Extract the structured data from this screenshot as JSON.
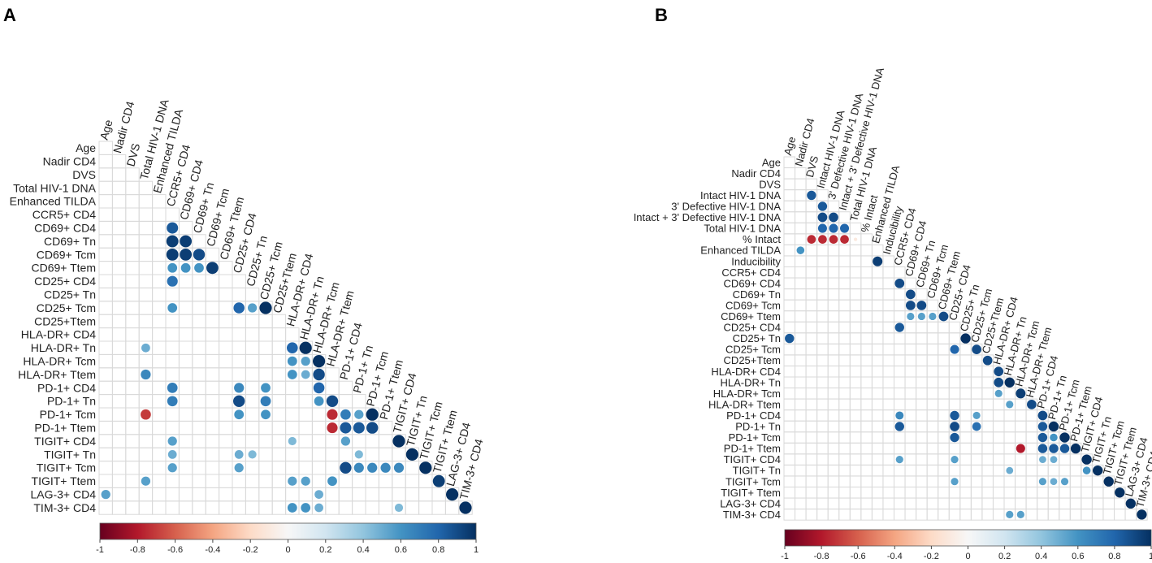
{
  "chart_data": [
    {
      "type": "heatmap",
      "panel_label": "A",
      "title": "",
      "color_scale": {
        "min": -1,
        "max": 1,
        "low": "#67001f",
        "mid": "#f7f7f7",
        "high": "#053061",
        "ticks": [
          "-1",
          "-0.8",
          "-0.6",
          "-0.4",
          "-0.2",
          "0",
          "0.2",
          "0.4",
          "0.6",
          "0.8",
          "1"
        ]
      },
      "variables": [
        "Age",
        "Nadir CD4",
        "DVS",
        "Total HIV-1 DNA",
        "Enhanced TILDA",
        "CCR5+ CD4",
        "CD69+ CD4",
        "CD69+ Tn",
        "CD69+ Tcm",
        "CD69+ Ttem",
        "CD25+ CD4",
        "CD25+ Tn",
        "CD25+ Tcm",
        "CD25+Ttem",
        "HLA-DR+ CD4",
        "HLA-DR+ Tn",
        "HLA-DR+ Tcm",
        "HLA-DR+ Ttem",
        "PD-1+  CD4",
        "PD-1+ Tn",
        "PD-1+ Tcm",
        "PD-1+ Ttem",
        "TIGIT+ CD4",
        "TIGIT+ Tn",
        "TIGIT+ Tcm",
        "TIGIT+ Ttem",
        "LAG-3+ CD4",
        "TIM-3+ CD4"
      ],
      "cells": [
        [
          6,
          5,
          0.85
        ],
        [
          7,
          5,
          0.95
        ],
        [
          7,
          6,
          0.95
        ],
        [
          8,
          5,
          0.95
        ],
        [
          8,
          6,
          0.95
        ],
        [
          8,
          7,
          0.9
        ],
        [
          9,
          5,
          0.6
        ],
        [
          9,
          6,
          0.6
        ],
        [
          9,
          7,
          0.6
        ],
        [
          9,
          8,
          0.95
        ],
        [
          10,
          5,
          0.75
        ],
        [
          12,
          5,
          0.6
        ],
        [
          12,
          10,
          0.8
        ],
        [
          12,
          11,
          0.55
        ],
        [
          12,
          12,
          1.0
        ],
        [
          15,
          3,
          0.5
        ],
        [
          15,
          14,
          0.8
        ],
        [
          15,
          15,
          1.0
        ],
        [
          16,
          14,
          0.6
        ],
        [
          16,
          15,
          0.55
        ],
        [
          16,
          16,
          1.0
        ],
        [
          17,
          3,
          0.65
        ],
        [
          17,
          14,
          0.6
        ],
        [
          17,
          15,
          0.5
        ],
        [
          17,
          16,
          0.9
        ],
        [
          18,
          5,
          0.7
        ],
        [
          18,
          10,
          0.65
        ],
        [
          18,
          12,
          0.6
        ],
        [
          18,
          16,
          0.8
        ],
        [
          19,
          5,
          0.7
        ],
        [
          19,
          10,
          0.9
        ],
        [
          19,
          12,
          0.7
        ],
        [
          19,
          16,
          0.6
        ],
        [
          19,
          17,
          0.9
        ],
        [
          20,
          3,
          -0.7
        ],
        [
          20,
          10,
          0.6
        ],
        [
          20,
          12,
          0.6
        ],
        [
          20,
          17,
          -0.75
        ],
        [
          20,
          18,
          0.7
        ],
        [
          20,
          19,
          0.55
        ],
        [
          20,
          20,
          1.0
        ],
        [
          21,
          17,
          -0.75
        ],
        [
          21,
          18,
          0.85
        ],
        [
          21,
          19,
          0.85
        ],
        [
          21,
          20,
          0.9
        ],
        [
          22,
          5,
          0.55
        ],
        [
          22,
          14,
          0.45
        ],
        [
          22,
          18,
          0.55
        ],
        [
          22,
          22,
          1.0
        ],
        [
          23,
          5,
          0.5
        ],
        [
          23,
          10,
          0.5
        ],
        [
          23,
          11,
          0.45
        ],
        [
          23,
          19,
          0.45
        ],
        [
          23,
          23,
          1.0
        ],
        [
          24,
          5,
          0.55
        ],
        [
          24,
          10,
          0.55
        ],
        [
          24,
          18,
          0.9
        ],
        [
          24,
          19,
          0.65
        ],
        [
          24,
          20,
          0.65
        ],
        [
          24,
          21,
          0.65
        ],
        [
          24,
          22,
          0.65
        ],
        [
          24,
          24,
          1.0
        ],
        [
          25,
          3,
          0.55
        ],
        [
          25,
          14,
          0.55
        ],
        [
          25,
          15,
          0.55
        ],
        [
          25,
          17,
          0.6
        ],
        [
          25,
          25,
          0.95
        ],
        [
          26,
          0,
          0.55
        ],
        [
          26,
          16,
          0.5
        ],
        [
          26,
          26,
          1.0
        ],
        [
          27,
          14,
          0.6
        ],
        [
          27,
          15,
          0.6
        ],
        [
          27,
          16,
          0.5
        ],
        [
          27,
          22,
          0.45
        ],
        [
          27,
          27,
          1.0
        ]
      ]
    },
    {
      "type": "heatmap",
      "panel_label": "B",
      "title": "",
      "color_scale": {
        "min": -1,
        "max": 1,
        "low": "#67001f",
        "mid": "#f7f7f7",
        "high": "#053061",
        "ticks": [
          "-1",
          "-0.8",
          "-0.6",
          "-0.4",
          "-0.2",
          "0",
          "0.2",
          "0.4",
          "0.6",
          "0.8",
          "1"
        ]
      },
      "variables": [
        "Age",
        "Nadir CD4",
        "DVS",
        "Intact HIV-1 DNA",
        "3' Defective HIV-1 DNA",
        "Intact + 3' Defective HIV-1 DNA",
        "Total HIV-1 DNA",
        "% Intact",
        "Enhanced TILDA",
        "Inducibility",
        "CCR5+ CD4",
        "CD69+ CD4",
        "CD69+ Tn",
        "CD69+ Tcm",
        "CD69+ Ttem",
        "CD25+ CD4",
        "CD25+ Tn",
        "CD25+ Tcm",
        "CD25+Ttem",
        "HLA-DR+ CD4",
        "HLA-DR+ Tn",
        "HLA-DR+ Tcm",
        "HLA-DR+ Ttem",
        "PD-1+  CD4",
        "PD-1+ Tn",
        "PD-1+ Tcm",
        "PD-1+ Ttem",
        "TIGIT+ CD4",
        "TIGIT+ Tn",
        "TIGIT+ Tcm",
        "TIGIT+ Ttem",
        "LAG-3+ CD4",
        "TIM-3+ CD4"
      ],
      "cells": [
        [
          3,
          2,
          0.85
        ],
        [
          4,
          3,
          0.85
        ],
        [
          5,
          3,
          0.9
        ],
        [
          5,
          4,
          0.9
        ],
        [
          6,
          3,
          0.8
        ],
        [
          6,
          4,
          0.8
        ],
        [
          6,
          5,
          0.8
        ],
        [
          7,
          2,
          -0.75
        ],
        [
          7,
          3,
          -0.75
        ],
        [
          7,
          4,
          -0.75
        ],
        [
          7,
          5,
          -0.75
        ],
        [
          7,
          6,
          -0.1
        ],
        [
          8,
          1,
          0.6
        ],
        [
          9,
          8,
          0.95
        ],
        [
          11,
          10,
          0.9
        ],
        [
          12,
          11,
          0.9
        ],
        [
          13,
          11,
          0.9
        ],
        [
          13,
          12,
          0.9
        ],
        [
          14,
          11,
          0.55
        ],
        [
          14,
          12,
          0.55
        ],
        [
          14,
          13,
          0.55
        ],
        [
          14,
          14,
          0.9
        ],
        [
          15,
          10,
          0.85
        ],
        [
          16,
          0,
          0.85
        ],
        [
          16,
          16,
          1.0
        ],
        [
          17,
          15,
          0.8
        ],
        [
          17,
          17,
          0.9
        ],
        [
          18,
          18,
          0.9
        ],
        [
          19,
          19,
          0.9
        ],
        [
          20,
          19,
          0.9
        ],
        [
          20,
          20,
          1.0
        ],
        [
          21,
          19,
          0.55
        ],
        [
          21,
          21,
          0.95
        ],
        [
          22,
          20,
          0.55
        ],
        [
          22,
          22,
          0.9
        ],
        [
          23,
          10,
          0.65
        ],
        [
          23,
          15,
          0.85
        ],
        [
          23,
          17,
          0.55
        ],
        [
          23,
          23,
          0.9
        ],
        [
          24,
          10,
          0.85
        ],
        [
          24,
          15,
          0.9
        ],
        [
          24,
          17,
          0.75
        ],
        [
          24,
          23,
          0.85
        ],
        [
          24,
          24,
          1.0
        ],
        [
          25,
          15,
          0.85
        ],
        [
          25,
          23,
          0.85
        ],
        [
          25,
          24,
          0.6
        ],
        [
          25,
          25,
          1.0
        ],
        [
          26,
          21,
          -0.8
        ],
        [
          26,
          23,
          0.85
        ],
        [
          26,
          24,
          0.85
        ],
        [
          26,
          25,
          0.85
        ],
        [
          26,
          26,
          1.0
        ],
        [
          27,
          10,
          0.55
        ],
        [
          27,
          15,
          0.55
        ],
        [
          27,
          23,
          0.5
        ],
        [
          27,
          24,
          0.5
        ],
        [
          27,
          27,
          1.0
        ],
        [
          28,
          20,
          0.5
        ],
        [
          28,
          27,
          0.6
        ],
        [
          28,
          28,
          1.0
        ],
        [
          29,
          15,
          0.55
        ],
        [
          29,
          23,
          0.55
        ],
        [
          29,
          24,
          0.5
        ],
        [
          29,
          25,
          0.55
        ],
        [
          29,
          29,
          1.0
        ],
        [
          30,
          30,
          1.0
        ],
        [
          31,
          31,
          1.0
        ],
        [
          32,
          20,
          0.55
        ],
        [
          32,
          21,
          0.55
        ],
        [
          32,
          32,
          1.0
        ]
      ]
    }
  ]
}
